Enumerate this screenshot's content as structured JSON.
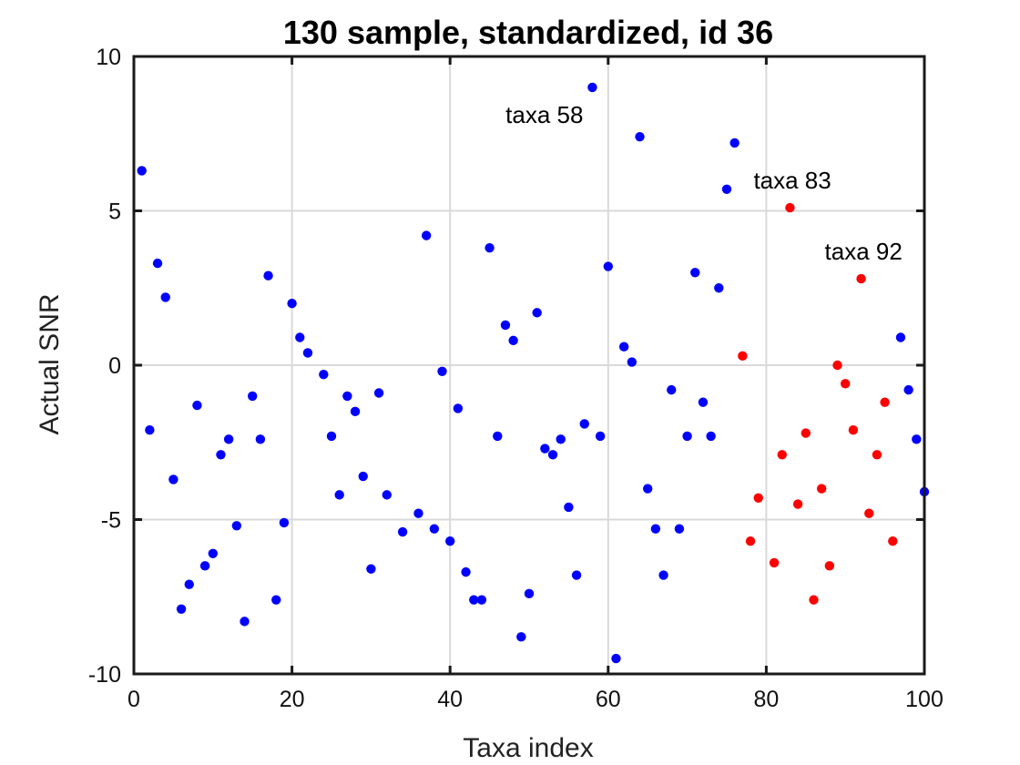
{
  "chart_data": {
    "type": "scatter",
    "title": "130 sample, standardized, id 36",
    "xlabel": "Taxa index",
    "ylabel": "Actual SNR",
    "xlim": [
      0,
      100
    ],
    "ylim": [
      -10,
      10
    ],
    "xticks": [
      0,
      20,
      40,
      60,
      80,
      100
    ],
    "yticks": [
      -10,
      -5,
      0,
      5,
      10
    ],
    "xtick_labels": [
      "0",
      "20",
      "40",
      "60",
      "80",
      "100"
    ],
    "ytick_labels": [
      "-10",
      "-5",
      "0",
      "5",
      "10"
    ],
    "grid": true,
    "colors": {
      "blue": "#0000ff",
      "red": "#ff0000"
    },
    "series": [
      {
        "color": "#0000ff",
        "points": [
          [
            1,
            6.3
          ],
          [
            2,
            -2.1
          ],
          [
            3,
            3.3
          ],
          [
            4,
            2.2
          ],
          [
            5,
            -3.7
          ],
          [
            6,
            -7.9
          ],
          [
            7,
            -7.1
          ],
          [
            8,
            -1.3
          ],
          [
            9,
            -6.5
          ],
          [
            10,
            -6.1
          ],
          [
            11,
            -2.9
          ],
          [
            12,
            -2.4
          ],
          [
            13,
            -5.2
          ],
          [
            14,
            -8.3
          ],
          [
            15,
            -1.0
          ],
          [
            16,
            -2.4
          ],
          [
            17,
            2.9
          ],
          [
            18,
            -7.6
          ],
          [
            19,
            -5.1
          ],
          [
            20,
            2.0
          ],
          [
            21,
            0.9
          ],
          [
            22,
            0.4
          ],
          [
            24,
            -0.3
          ],
          [
            25,
            -2.3
          ],
          [
            26,
            -4.2
          ],
          [
            27,
            -1.0
          ],
          [
            28,
            -1.5
          ],
          [
            29,
            -3.6
          ],
          [
            30,
            -6.6
          ],
          [
            31,
            -0.9
          ],
          [
            32,
            -4.2
          ],
          [
            34,
            -5.4
          ],
          [
            36,
            -4.8
          ],
          [
            37,
            4.2
          ],
          [
            38,
            -5.3
          ],
          [
            39,
            -0.2
          ],
          [
            40,
            -5.7
          ],
          [
            41,
            -1.4
          ],
          [
            42,
            -6.7
          ],
          [
            43,
            -7.6
          ],
          [
            44,
            -7.6
          ],
          [
            45,
            3.8
          ],
          [
            46,
            -2.3
          ],
          [
            47,
            1.3
          ],
          [
            48,
            0.8
          ],
          [
            49,
            -8.8
          ],
          [
            50,
            -7.4
          ],
          [
            51,
            1.7
          ],
          [
            52,
            -2.7
          ],
          [
            53,
            -2.9
          ],
          [
            54,
            -2.4
          ],
          [
            55,
            -4.6
          ],
          [
            56,
            -6.8
          ],
          [
            57,
            -1.9
          ],
          [
            58,
            9.0
          ],
          [
            59,
            -2.3
          ],
          [
            60,
            3.2
          ],
          [
            61,
            -9.5
          ],
          [
            62,
            0.6
          ],
          [
            63,
            0.1
          ],
          [
            64,
            7.4
          ],
          [
            65,
            -4.0
          ],
          [
            66,
            -5.3
          ],
          [
            67,
            -6.8
          ],
          [
            68,
            -0.8
          ],
          [
            69,
            -5.3
          ],
          [
            70,
            -2.3
          ],
          [
            71,
            3.0
          ],
          [
            72,
            -1.2
          ],
          [
            73,
            -2.3
          ],
          [
            74,
            2.5
          ],
          [
            75,
            5.7
          ],
          [
            76,
            7.2
          ],
          [
            97,
            0.9
          ],
          [
            98,
            -0.8
          ],
          [
            99,
            -2.4
          ],
          [
            100,
            -4.1
          ]
        ]
      },
      {
        "color": "#ff0000",
        "points": [
          [
            77,
            0.3
          ],
          [
            78,
            -5.7
          ],
          [
            79,
            -4.3
          ],
          [
            81,
            -6.4
          ],
          [
            82,
            -2.9
          ],
          [
            83,
            5.1
          ],
          [
            84,
            -4.5
          ],
          [
            85,
            -2.2
          ],
          [
            86,
            -7.6
          ],
          [
            87,
            -4.0
          ],
          [
            88,
            -6.5
          ],
          [
            89,
            0.0
          ],
          [
            90,
            -0.6
          ],
          [
            91,
            -2.1
          ],
          [
            92,
            2.8
          ],
          [
            93,
            -4.8
          ],
          [
            94,
            -2.9
          ],
          [
            95,
            -1.2
          ],
          [
            96,
            -5.7
          ]
        ]
      }
    ],
    "annotations": [
      {
        "text": "taxa 58",
        "x": 58,
        "y": 9.0,
        "pos": "lower-left"
      },
      {
        "text": "taxa 83",
        "x": 83,
        "y": 5.1,
        "pos": "upper-left"
      },
      {
        "text": "taxa 92",
        "x": 92,
        "y": 2.8,
        "pos": "upper-left"
      }
    ]
  }
}
